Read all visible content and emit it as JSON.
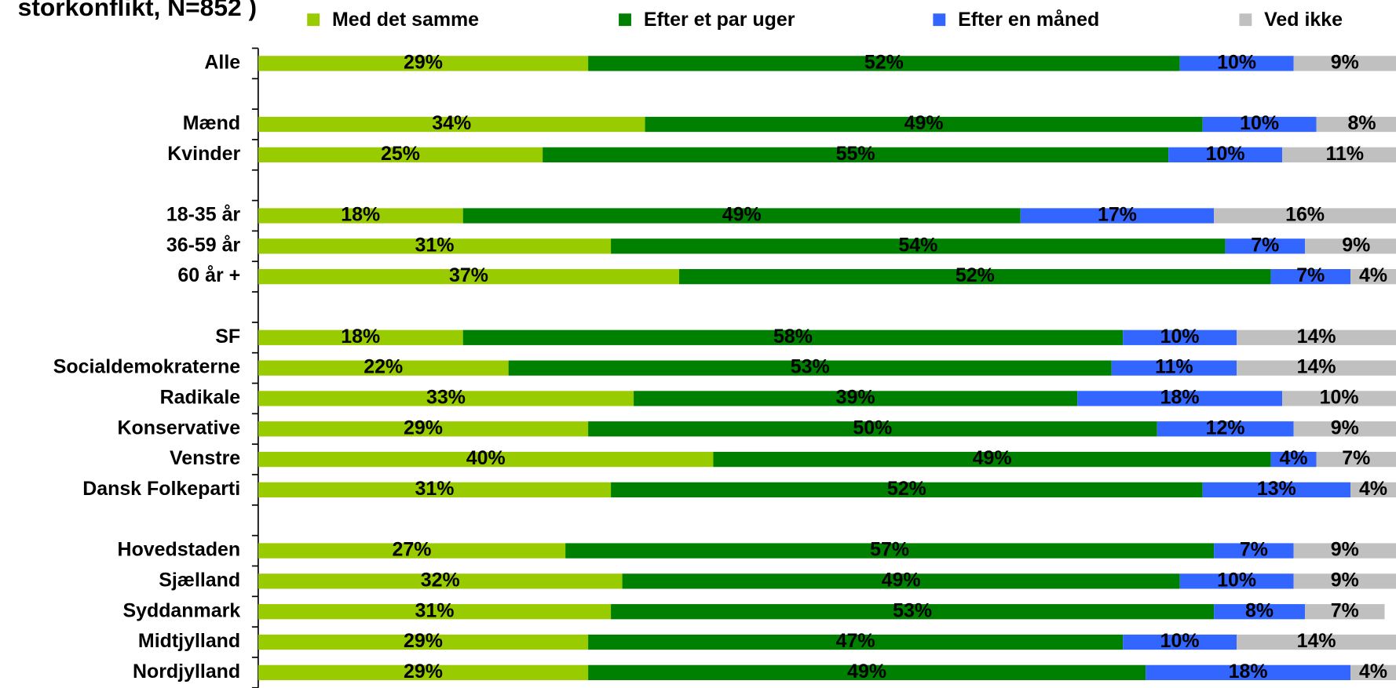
{
  "chart_data": {
    "type": "stacked-bar",
    "orientation": "horizontal",
    "title": "storkonflikt, N=852 )",
    "categories": [
      "Alle",
      null,
      "Mænd",
      "Kvinder",
      null,
      "18-35 år",
      "36-59 år",
      "60 år +",
      null,
      "SF",
      "Socialdemokraterne",
      "Radikale",
      "Konservative",
      "Venstre",
      "Dansk Folkeparti",
      null,
      "Hovedstaden",
      "Sjælland",
      "Syddanmark",
      "Midtjylland",
      "Nordjylland"
    ],
    "xlim": [
      0,
      100
    ],
    "legend": "top",
    "series": [
      {
        "name": "Med det samme",
        "color": "#99cc00",
        "values": [
          29,
          null,
          34,
          25,
          null,
          18,
          31,
          37,
          null,
          18,
          22,
          33,
          29,
          40,
          31,
          null,
          27,
          32,
          31,
          29,
          29
        ],
        "value_labels": [
          "29%",
          null,
          "34%",
          "25%",
          null,
          "18%",
          "31%",
          "37%",
          null,
          "18%",
          "22%",
          "33%",
          "29%",
          "40%",
          "31%",
          null,
          "27%",
          "32%",
          "31%",
          "29%",
          "29%"
        ]
      },
      {
        "name": "Efter et par uger",
        "color": "#008000",
        "values": [
          52,
          null,
          49,
          55,
          null,
          49,
          54,
          52,
          null,
          58,
          53,
          39,
          50,
          49,
          52,
          null,
          57,
          49,
          53,
          47,
          49
        ],
        "value_labels": [
          "52%",
          null,
          "49%",
          "55%",
          null,
          "49%",
          "54%",
          "52%",
          null,
          "58%",
          "53%",
          "39%",
          "50%",
          "49%",
          "52%",
          null,
          "57%",
          "49%",
          "53%",
          "47%",
          "49%"
        ]
      },
      {
        "name": "Efter en måned",
        "color": "#3366ff",
        "values": [
          10,
          null,
          10,
          10,
          null,
          17,
          7,
          7,
          null,
          10,
          11,
          18,
          12,
          4,
          13,
          null,
          7,
          10,
          8,
          10,
          18
        ],
        "value_labels": [
          "10%",
          null,
          "10%",
          "10%",
          null,
          "17%",
          "7%",
          "7%",
          null,
          "10%",
          "11%",
          "18%",
          "12%",
          "4%",
          "13%",
          null,
          "7%",
          "10%",
          "8%",
          "10%",
          "18%"
        ]
      },
      {
        "name": "Ved ikke",
        "color": "#c0c0c0",
        "values": [
          9,
          null,
          8,
          11,
          null,
          16,
          9,
          4,
          null,
          14,
          14,
          10,
          9,
          7,
          4,
          null,
          9,
          9,
          7,
          14,
          4
        ],
        "value_labels": [
          "9%",
          null,
          "8%",
          "11%",
          null,
          "16%",
          "9%",
          "4%",
          null,
          "14%",
          "14%",
          "10%",
          "9%",
          "7%",
          "4%",
          null,
          "9%",
          "9%",
          "7%",
          "14%",
          "4%"
        ]
      }
    ]
  }
}
